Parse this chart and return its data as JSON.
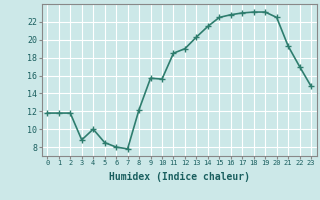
{
  "x": [
    0,
    1,
    2,
    3,
    4,
    5,
    6,
    7,
    8,
    9,
    10,
    11,
    12,
    13,
    14,
    15,
    16,
    17,
    18,
    19,
    20,
    21,
    22,
    23
  ],
  "y": [
    11.8,
    11.8,
    11.8,
    8.8,
    10.0,
    8.5,
    8.0,
    7.8,
    12.2,
    15.7,
    15.6,
    18.5,
    19.0,
    20.3,
    21.5,
    22.5,
    22.8,
    23.0,
    23.1,
    23.1,
    22.5,
    19.3,
    17.0,
    14.8
  ],
  "line_color": "#2e7d6e",
  "marker": "+",
  "marker_size": 4,
  "xlabel": "Humidex (Indice chaleur)",
  "xlim": [
    -0.5,
    23.5
  ],
  "ylim": [
    7,
    24
  ],
  "yticks": [
    8,
    10,
    12,
    14,
    16,
    18,
    20,
    22
  ],
  "xticks": [
    0,
    1,
    2,
    3,
    4,
    5,
    6,
    7,
    8,
    9,
    10,
    11,
    12,
    13,
    14,
    15,
    16,
    17,
    18,
    19,
    20,
    21,
    22,
    23
  ],
  "bg_color": "#cce8e8",
  "grid_color": "#ffffff",
  "line_width": 1.2
}
